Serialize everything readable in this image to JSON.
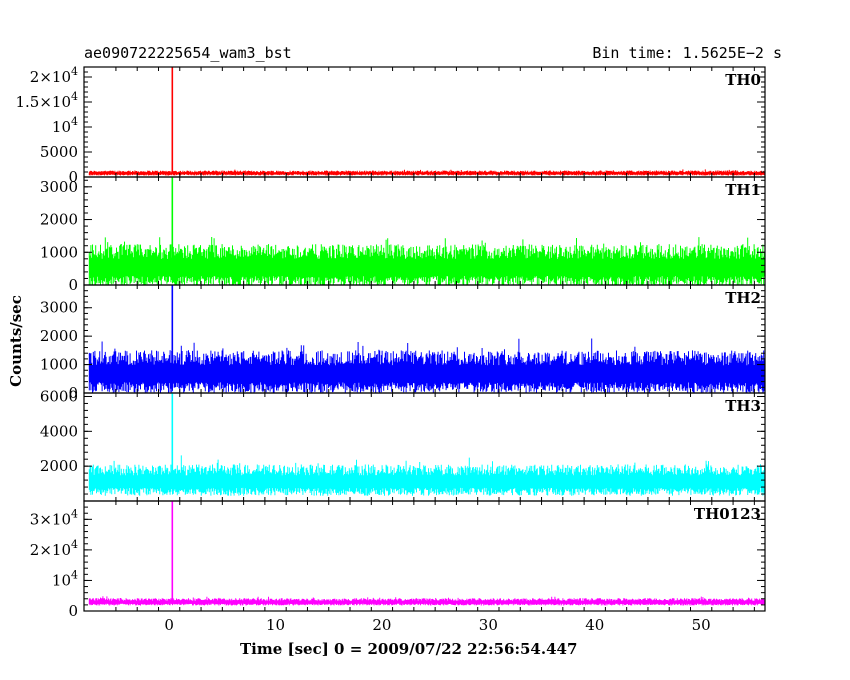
{
  "header": {
    "title": "ae090722225654_wam3_bst",
    "bin_time": "Bin time: 1.5625E−2  s"
  },
  "axes": {
    "ylabel": "Counts/sec",
    "xlabel": "Time [sec] 0 = 2009/07/22 22:56:54.447"
  },
  "chart_data": {
    "type": "line",
    "x_range": [
      -8,
      56
    ],
    "x_ticks": [
      0,
      10,
      20,
      30,
      40,
      50
    ],
    "x_tick_labels": [
      "0",
      "10",
      "20",
      "30",
      "40",
      "50"
    ],
    "data_x_range": [
      -7.5,
      56
    ],
    "peak_time": 0.3,
    "panels": [
      {
        "name": "TH0",
        "color": "#ff0000",
        "ylim": [
          0,
          22000
        ],
        "ticks": [
          0,
          5000,
          10000,
          15000,
          20000
        ],
        "tick_labels": [
          "0",
          "5000",
          "10^4",
          "1.5×10^4",
          "2×10^4"
        ],
        "baseline": 800,
        "noise": 500,
        "peak": 22000
      },
      {
        "name": "TH1",
        "color": "#00ff00",
        "ylim": [
          0,
          3300
        ],
        "ticks": [
          0,
          1000,
          2000,
          3000
        ],
        "tick_labels": [
          "0",
          "1000",
          "2000",
          "3000"
        ],
        "baseline": 600,
        "noise": 650,
        "peak": 3300
      },
      {
        "name": "TH2",
        "color": "#0000ff",
        "ylim": [
          0,
          3800
        ],
        "ticks": [
          0,
          1000,
          2000,
          3000
        ],
        "tick_labels": [
          "0",
          "1000",
          "2000",
          "3000"
        ],
        "baseline": 750,
        "noise": 750,
        "peak": 3800
      },
      {
        "name": "TH3",
        "color": "#00ffff",
        "ylim": [
          0,
          6200
        ],
        "ticks": [
          2000,
          4000,
          6000
        ],
        "tick_labels": [
          "2000",
          "4000",
          "6000"
        ],
        "baseline": 1200,
        "noise": 900,
        "peak": 6200
      },
      {
        "name": "TH0123",
        "color": "#ff00ff",
        "ylim": [
          0,
          36000
        ],
        "ticks": [
          0,
          10000,
          20000,
          30000
        ],
        "tick_labels": [
          "0",
          "10^4",
          "2×10^4",
          "3×10^4"
        ],
        "baseline": 3000,
        "noise": 1200,
        "peak": 36000
      }
    ]
  }
}
